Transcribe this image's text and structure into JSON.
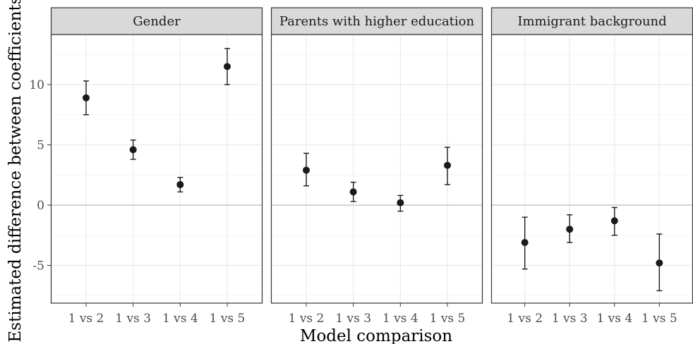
{
  "chart_data": {
    "type": "scatter",
    "xlabel": "Model comparison",
    "ylabel": "Estimated difference between coefficients",
    "categories": [
      "1 vs 2",
      "1 vs 3",
      "1 vs 4",
      "1 vs 5"
    ],
    "ylim": [
      -8,
      14
    ],
    "yticks": [
      -5,
      0,
      5,
      10
    ],
    "reference_line": 0,
    "grid": true,
    "panels": [
      {
        "title": "Gender",
        "points": [
          {
            "x": "1 vs 2",
            "y": 8.9,
            "lower": 7.5,
            "upper": 10.3
          },
          {
            "x": "1 vs 3",
            "y": 4.6,
            "lower": 3.8,
            "upper": 5.4
          },
          {
            "x": "1 vs 4",
            "y": 1.7,
            "lower": 1.1,
            "upper": 2.3
          },
          {
            "x": "1 vs 5",
            "y": 11.5,
            "lower": 10.0,
            "upper": 13.0
          }
        ]
      },
      {
        "title": "Parents with higher education",
        "points": [
          {
            "x": "1 vs 2",
            "y": 2.9,
            "lower": 1.6,
            "upper": 4.3
          },
          {
            "x": "1 vs 3",
            "y": 1.1,
            "lower": 0.3,
            "upper": 1.9
          },
          {
            "x": "1 vs 4",
            "y": 0.2,
            "lower": -0.5,
            "upper": 0.8
          },
          {
            "x": "1 vs 5",
            "y": 3.3,
            "lower": 1.7,
            "upper": 4.8
          }
        ]
      },
      {
        "title": "Immigrant background",
        "points": [
          {
            "x": "1 vs 2",
            "y": -3.1,
            "lower": -5.3,
            "upper": -1.0
          },
          {
            "x": "1 vs 3",
            "y": -2.0,
            "lower": -3.1,
            "upper": -0.8
          },
          {
            "x": "1 vs 4",
            "y": -1.3,
            "lower": -2.5,
            "upper": -0.2
          },
          {
            "x": "1 vs 5",
            "y": -4.8,
            "lower": -7.1,
            "upper": -2.4
          }
        ]
      }
    ]
  },
  "colors": {
    "point": "#1a1a1a",
    "strip_fill": "#d9d9d9",
    "strip_border": "#333333",
    "panel_border": "#333333",
    "grid_major": "#ebebeb",
    "grid_minor": "#f5f5f5",
    "reference_line": "#bdbdbd",
    "tick_text": "#4d4d4d"
  }
}
